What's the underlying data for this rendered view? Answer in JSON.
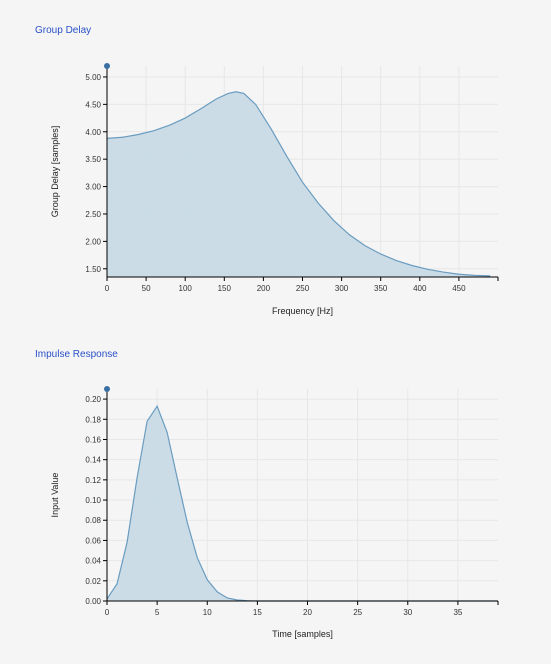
{
  "sections": {
    "group_delay_title": "Group Delay",
    "impulse_title": "Impulse Response"
  },
  "colors": {
    "line": "#6a9cc0",
    "fill": "#c7d9e4",
    "title": "#2a50c8",
    "marker": "#3a6fa3"
  },
  "chart_data": [
    {
      "id": "group-delay",
      "type": "area",
      "title": "Group Delay",
      "xlabel": "Frequency [Hz]",
      "ylabel": "Group Delay [samples]",
      "xlim": [
        0,
        500
      ],
      "ylim": [
        1.35,
        5.2
      ],
      "xticks": [
        0,
        50,
        100,
        150,
        200,
        250,
        300,
        350,
        400,
        450
      ],
      "xtick_labels": [
        "0",
        "50",
        "100",
        "150",
        "200",
        "250",
        "300",
        "350",
        "400",
        "450"
      ],
      "yticks": [
        1.5,
        2.0,
        2.5,
        3.0,
        3.5,
        4.0,
        4.5,
        5.0
      ],
      "ytick_labels": [
        "1.50",
        "2.00",
        "2.50",
        "3.00",
        "3.50",
        "4.00",
        "4.50",
        "5.00"
      ],
      "grid": true,
      "x": [
        0,
        20,
        40,
        60,
        80,
        100,
        120,
        140,
        155,
        165,
        175,
        190,
        210,
        230,
        250,
        270,
        290,
        310,
        330,
        350,
        370,
        390,
        410,
        430,
        450,
        470,
        490
      ],
      "y": [
        3.88,
        3.9,
        3.95,
        4.02,
        4.12,
        4.25,
        4.42,
        4.6,
        4.7,
        4.73,
        4.7,
        4.5,
        4.05,
        3.55,
        3.08,
        2.7,
        2.38,
        2.12,
        1.92,
        1.77,
        1.65,
        1.56,
        1.49,
        1.44,
        1.4,
        1.38,
        1.37
      ]
    },
    {
      "id": "impulse-response",
      "type": "area",
      "title": "Impulse Response",
      "xlabel": "Time [samples]",
      "ylabel": "Input Value",
      "xlim": [
        0,
        39
      ],
      "ylim": [
        0,
        0.21
      ],
      "xticks": [
        0,
        5,
        10,
        15,
        20,
        25,
        30,
        35
      ],
      "xtick_labels": [
        "0",
        "5",
        "10",
        "15",
        "20",
        "25",
        "30",
        "35"
      ],
      "yticks": [
        0,
        0.02,
        0.04,
        0.06,
        0.08,
        0.1,
        0.12,
        0.14,
        0.16,
        0.18,
        0.2
      ],
      "ytick_labels": [
        "0.00",
        "0.02",
        "0.04",
        "0.06",
        "0.08",
        "0.10",
        "0.12",
        "0.14",
        "0.16",
        "0.18",
        "0.20"
      ],
      "grid": true,
      "x": [
        0,
        1,
        2,
        3,
        4,
        5,
        6,
        7,
        8,
        9,
        10,
        11,
        12,
        13,
        14,
        15,
        16,
        17,
        18,
        19,
        20,
        21,
        22,
        23,
        24,
        25,
        26,
        27,
        28,
        29,
        30,
        31,
        32,
        33,
        34,
        35,
        36,
        37,
        38,
        39
      ],
      "y": [
        0.002,
        0.017,
        0.058,
        0.122,
        0.178,
        0.193,
        0.167,
        0.122,
        0.078,
        0.043,
        0.021,
        0.009,
        0.003,
        0.001,
        0.0003,
        0,
        0,
        0,
        0,
        0,
        0,
        0,
        0,
        0,
        0,
        0,
        0,
        0,
        0,
        0,
        0,
        0,
        0,
        0,
        0,
        0,
        0,
        0,
        0,
        0
      ]
    }
  ]
}
